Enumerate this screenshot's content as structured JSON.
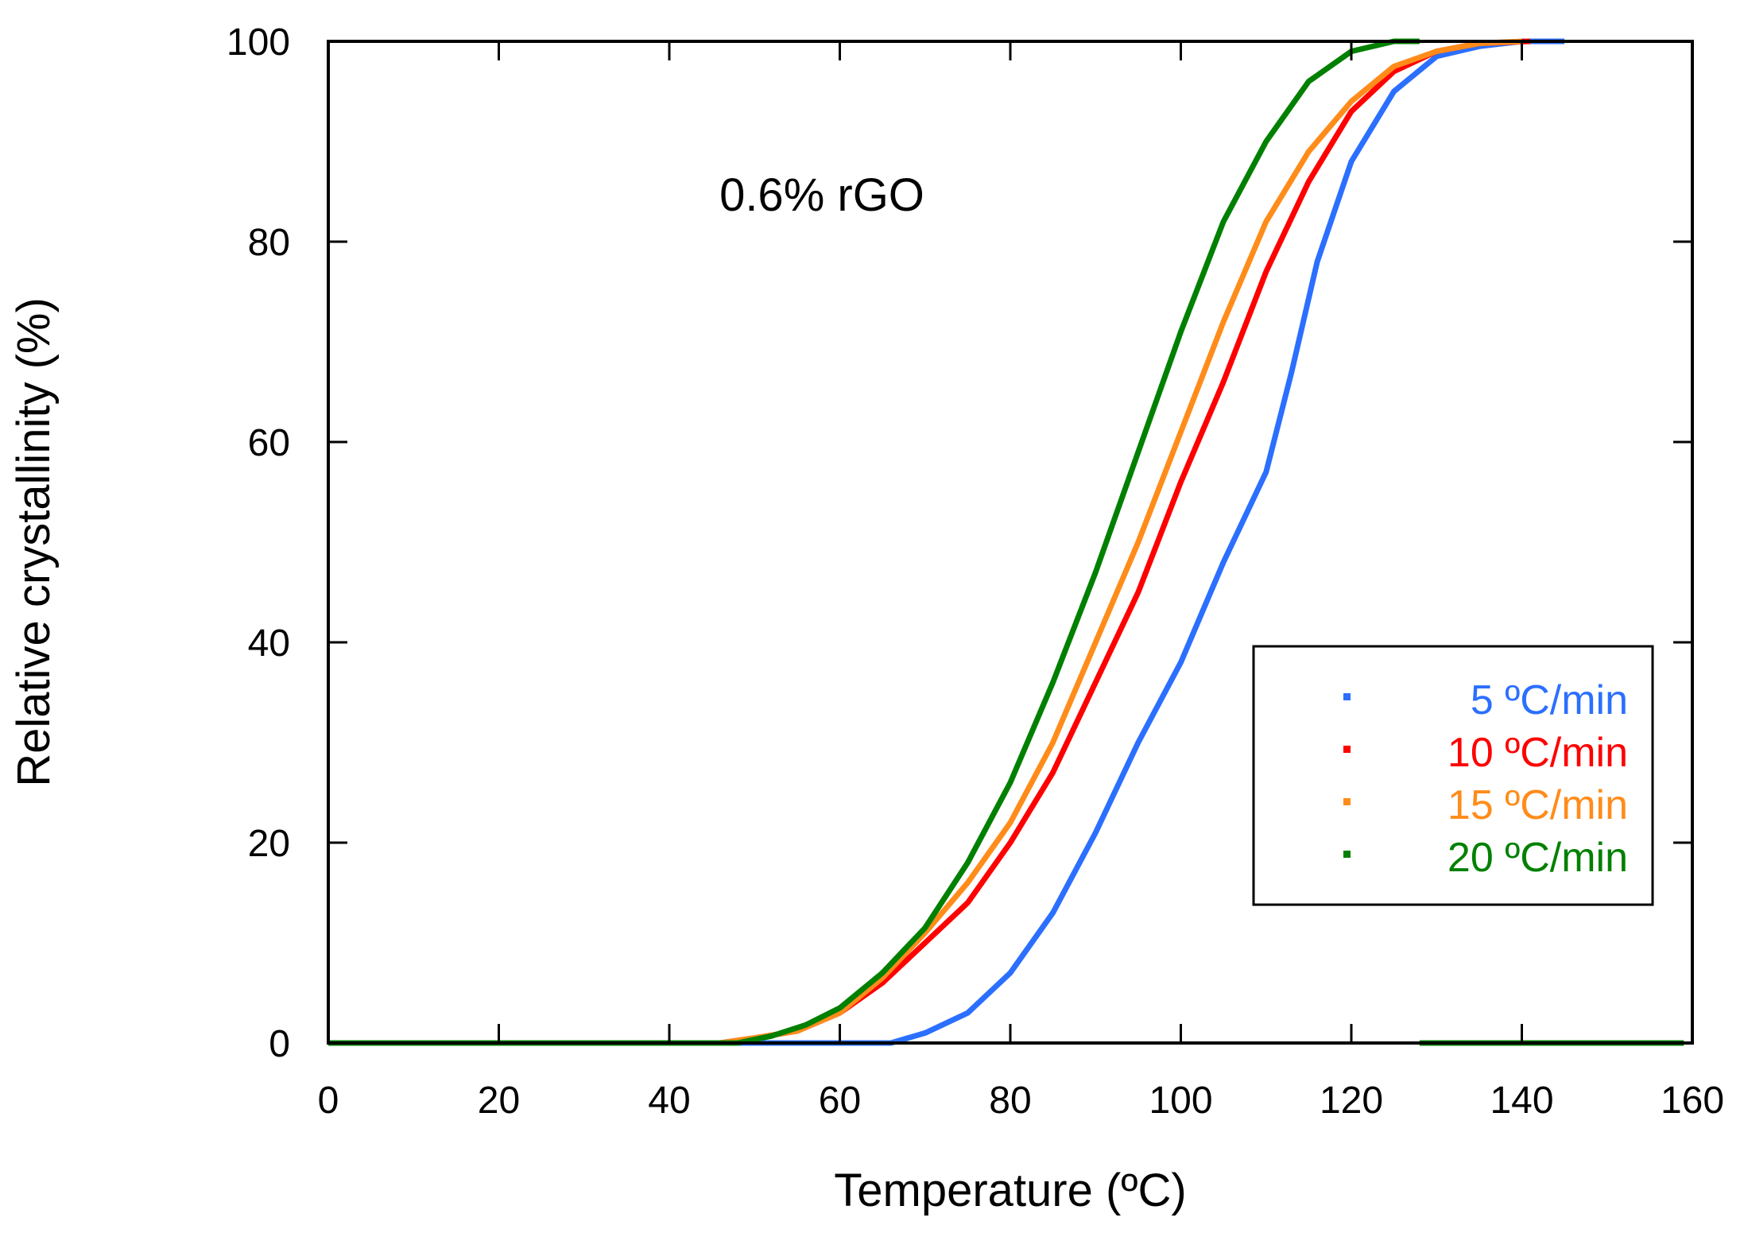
{
  "chart_data": {
    "type": "line",
    "title": "",
    "annotation": "0.6% rGO",
    "xlabel": "Temperature (ºC)",
    "ylabel": "Relative crystallinity (%)",
    "xlim": [
      0,
      160
    ],
    "ylim": [
      0,
      100
    ],
    "xticks": [
      0,
      20,
      40,
      60,
      80,
      100,
      120,
      140,
      160
    ],
    "yticks": [
      0,
      20,
      40,
      60,
      80,
      100
    ],
    "grid": false,
    "legend_position": "lower-right",
    "series": [
      {
        "name": "5 ºC/min",
        "color": "#2b6fff",
        "x": [
          0,
          66,
          70,
          75,
          80,
          85,
          90,
          95,
          100,
          105,
          110,
          113,
          116,
          120,
          125,
          130,
          135,
          140,
          145
        ],
        "y": [
          0,
          0,
          1,
          3,
          7,
          13,
          21,
          30,
          38,
          48,
          57,
          67,
          78,
          88,
          95,
          98.5,
          99.5,
          100,
          100
        ]
      },
      {
        "name": "10 ºC/min",
        "color": "#ff0000",
        "x": [
          0,
          46,
          50,
          55,
          60,
          65,
          70,
          75,
          80,
          85,
          90,
          95,
          100,
          105,
          110,
          115,
          120,
          125,
          130,
          135,
          141
        ],
        "y": [
          0,
          0,
          0.5,
          1.2,
          3,
          6,
          10,
          14,
          20,
          27,
          36,
          45,
          56,
          66,
          77,
          86,
          93,
          97,
          99,
          99.8,
          100
        ]
      },
      {
        "name": "15 ºC/min",
        "color": "#ff8c1a",
        "x": [
          0,
          46,
          50,
          55,
          60,
          65,
          70,
          75,
          80,
          85,
          90,
          95,
          100,
          105,
          110,
          115,
          120,
          125,
          130,
          135,
          140
        ],
        "y": [
          0,
          0,
          0.5,
          1.2,
          3,
          6.5,
          11,
          16,
          22,
          30,
          40,
          50,
          61,
          72,
          82,
          89,
          94,
          97.5,
          99,
          99.8,
          100
        ]
      },
      {
        "name": "20 ºC/min",
        "color": "#008000",
        "x": [
          0,
          48,
          52,
          56,
          60,
          65,
          70,
          75,
          80,
          85,
          90,
          95,
          100,
          105,
          110,
          115,
          120,
          125,
          128
        ],
        "y": [
          0,
          0,
          0.7,
          1.8,
          3.5,
          7,
          11.5,
          18,
          26,
          36,
          47,
          59,
          71,
          82,
          90,
          96,
          99,
          100,
          100
        ]
      }
    ],
    "baseline_end": 159
  }
}
